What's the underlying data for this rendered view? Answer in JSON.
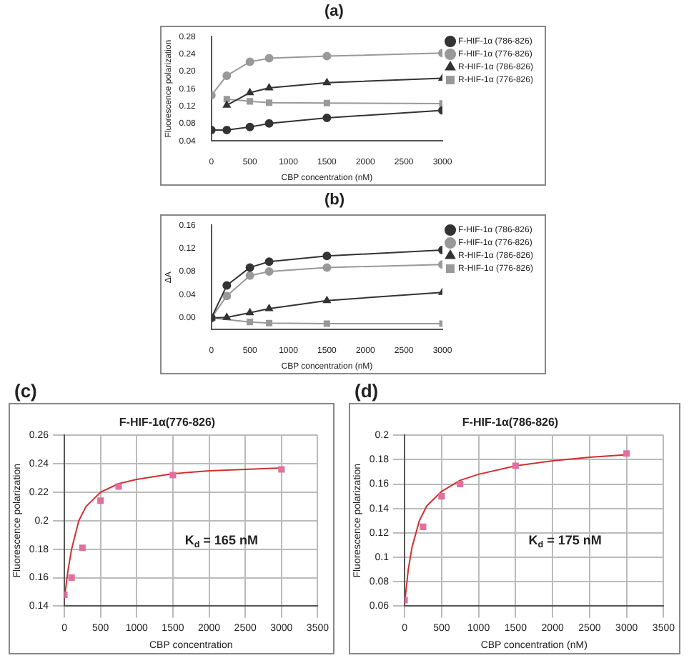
{
  "chart_data": [
    {
      "type": "line",
      "annotations": [
        "(a)"
      ],
      "xlabel": "CBP concentration (nM)",
      "ylabel": "Fluorescence polarization",
      "x": [
        0,
        200,
        500,
        750,
        1500,
        3000
      ],
      "xlim": [
        0,
        3000
      ],
      "xticks": [
        0,
        500,
        1000,
        1500,
        2000,
        2500,
        3000
      ],
      "ylim": [
        0.04,
        0.28
      ],
      "yticks": [
        0.04,
        0.08,
        0.12,
        0.16,
        {
          "value": 0.2,
          "label": "0.20"
        },
        0.24,
        0.28
      ],
      "legend": "right",
      "marker": "circle",
      "series": [
        {
          "name": "F-HIF-1α (786-826)",
          "color": "#333333",
          "values": [
            0.065,
            0.065,
            0.072,
            0.08,
            0.093,
            0.11
          ]
        },
        {
          "name": "F-HIF-1α (776-826)",
          "color": "#999999",
          "values": [
            0.145,
            0.19,
            0.222,
            0.23,
            0.235,
            0.242
          ]
        },
        {
          "name": "R-HIF-1α (786-826)",
          "color": "#333333",
          "marker": "triangle",
          "values": [
            null,
            0.122,
            0.151,
            0.162,
            0.174,
            0.184
          ]
        },
        {
          "name": "R-HIF-1α (776-826)",
          "color": "#999999",
          "marker": "square",
          "values": [
            null,
            0.136,
            0.131,
            0.128,
            0.127,
            0.126
          ]
        }
      ]
    },
    {
      "type": "line",
      "annotations": [
        "(b)"
      ],
      "xlabel": "CBP concentration (nM)",
      "ylabel": "ΔA",
      "x": [
        0,
        200,
        500,
        750,
        1500,
        3000
      ],
      "xlim": [
        0,
        3000
      ],
      "xticks": [
        0,
        500,
        1000,
        1500,
        2000,
        2500,
        3000
      ],
      "ylim": [
        -0.02,
        0.16
      ],
      "yticks": [
        {
          "value": 0,
          "label": "0.00"
        },
        0.04,
        0.08,
        0.12,
        0.16
      ],
      "legend": "right",
      "marker": "circle",
      "series": [
        {
          "name": "F-HIF-1α (786-826)",
          "color": "#333333",
          "values": [
            0,
            0.056,
            0.087,
            0.097,
            0.107,
            0.117
          ]
        },
        {
          "name": "F-HIF-1α (776-826)",
          "color": "#999999",
          "values": [
            0,
            0.038,
            0.073,
            0.08,
            0.087,
            0.092
          ]
        },
        {
          "name": "R-HIF-1α (786-826)",
          "color": "#333333",
          "marker": "triangle",
          "values": [
            0,
            0.001,
            0.009,
            0.016,
            0.03,
            0.044
          ]
        },
        {
          "name": "R-HIF-1α (776-826)",
          "color": "#999999",
          "marker": "square",
          "values": [
            0,
            null,
            -0.007,
            -0.009,
            -0.01,
            -0.01
          ]
        }
      ]
    },
    {
      "type": "scatter",
      "title": "F-HIF-1α(776-826)",
      "annotations": [
        "(c)",
        "K$_{d}$ = 165 nM"
      ],
      "xlabel": "CBP concentration",
      "ylabel": "Fluorescence polarization",
      "xlim": [
        0,
        3500
      ],
      "xticks": [
        0,
        500,
        1000,
        1500,
        2000,
        2500,
        3000,
        3500
      ],
      "ylim": [
        0.14,
        0.26
      ],
      "yticks": [
        0.14,
        0.16,
        0.18,
        0.2,
        0.22,
        0.24,
        0.26
      ],
      "grid": true,
      "marker": "square",
      "series": [
        {
          "color": "#e070a0",
          "x": [
            0,
            100,
            250,
            500,
            750,
            1500,
            3000
          ],
          "values": [
            0.148,
            0.16,
            0.181,
            0.214,
            0.224,
            0.232,
            0.236
          ]
        },
        {
          "type": "line",
          "color": "#d03030",
          "marker": "none",
          "x": [
            0,
            50,
            100,
            200,
            300,
            500,
            750,
            1000,
            1500,
            2000,
            2500,
            3000
          ],
          "values": [
            0.145,
            0.165,
            0.18,
            0.2,
            0.21,
            0.22,
            0.226,
            0.229,
            0.233,
            0.235,
            0.236,
            0.237
          ]
        }
      ]
    },
    {
      "type": "scatter",
      "title": "F-HIF-1α(786-826)",
      "annotations": [
        "(d)",
        "K$_{d}$ = 175 nM"
      ],
      "xlabel": "CBP concentration (nM)",
      "ylabel": "Fluorescence polarization",
      "xlim": [
        0,
        3500
      ],
      "xticks": [
        0,
        500,
        1000,
        1500,
        2000,
        2500,
        3000,
        3500
      ],
      "ylim": [
        0.06,
        0.2
      ],
      "yticks": [
        0.06,
        0.08,
        0.1,
        0.12,
        0.14,
        0.16,
        0.18,
        0.2
      ],
      "grid": true,
      "marker": "square",
      "series": [
        {
          "color": "#e070a0",
          "x": [
            0,
            250,
            500,
            750,
            1500,
            3000
          ],
          "values": [
            0.065,
            0.125,
            0.15,
            0.16,
            0.175,
            0.185
          ]
        },
        {
          "type": "line",
          "color": "#d03030",
          "marker": "none",
          "x": [
            0,
            50,
            100,
            200,
            300,
            500,
            750,
            1000,
            1500,
            2000,
            2500,
            3000
          ],
          "values": [
            0.062,
            0.09,
            0.108,
            0.13,
            0.142,
            0.154,
            0.163,
            0.168,
            0.175,
            0.179,
            0.182,
            0.184
          ]
        }
      ]
    }
  ]
}
